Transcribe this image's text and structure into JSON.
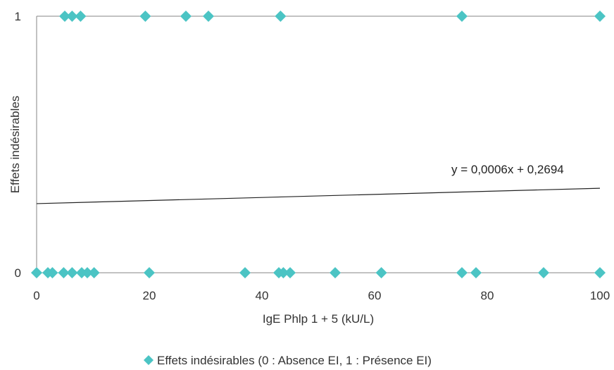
{
  "chart_data": {
    "type": "scatter",
    "title": "",
    "xlabel": "IgE Phlp 1 + 5  (kU/L)",
    "ylabel": "Effets indésirables",
    "xlim": [
      0,
      100
    ],
    "ylim": [
      0,
      1
    ],
    "x_ticks": [
      "0",
      "20",
      "40",
      "60",
      "80",
      "100"
    ],
    "y_ticks": [
      "0",
      "1"
    ],
    "grid": "horizontal",
    "legend_position": "bottom",
    "series": [
      {
        "name": "Effets indésirables (0 : Absence EI, 1 : Présence EI)",
        "color": "#4BC4C4",
        "marker": "diamond",
        "points": [
          {
            "x": 0,
            "y": 0
          },
          {
            "x": 2,
            "y": 0
          },
          {
            "x": 2.8,
            "y": 0
          },
          {
            "x": 4.8,
            "y": 0
          },
          {
            "x": 6.3,
            "y": 0
          },
          {
            "x": 8,
            "y": 0
          },
          {
            "x": 9,
            "y": 0
          },
          {
            "x": 10.2,
            "y": 0
          },
          {
            "x": 20,
            "y": 0
          },
          {
            "x": 37,
            "y": 0
          },
          {
            "x": 43,
            "y": 0
          },
          {
            "x": 43.8,
            "y": 0
          },
          {
            "x": 45,
            "y": 0
          },
          {
            "x": 53,
            "y": 0
          },
          {
            "x": 61.2,
            "y": 0
          },
          {
            "x": 75.5,
            "y": 0
          },
          {
            "x": 78,
            "y": 0
          },
          {
            "x": 90,
            "y": 0
          },
          {
            "x": 100,
            "y": 0
          },
          {
            "x": 5,
            "y": 1
          },
          {
            "x": 6.3,
            "y": 1
          },
          {
            "x": 7.8,
            "y": 1
          },
          {
            "x": 19.3,
            "y": 1
          },
          {
            "x": 26.5,
            "y": 1
          },
          {
            "x": 30.5,
            "y": 1
          },
          {
            "x": 43.3,
            "y": 1
          },
          {
            "x": 75.5,
            "y": 1
          },
          {
            "x": 100,
            "y": 1
          }
        ]
      }
    ],
    "trendline": {
      "type": "linear",
      "slope": 0.0006,
      "intercept": 0.2694,
      "color": "#222222",
      "equation_label": "y = 0,0006x + 0,2694"
    }
  }
}
